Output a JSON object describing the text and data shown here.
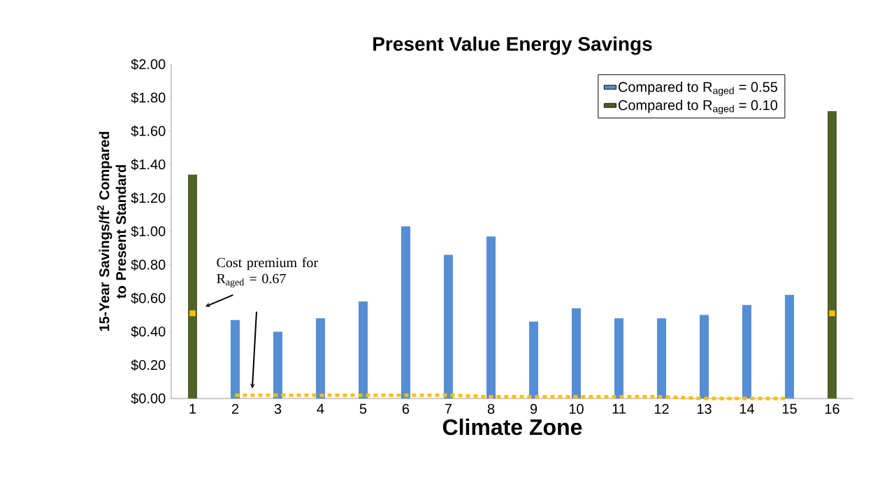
{
  "chart_data": {
    "type": "bar",
    "title": "Present Value Energy Savings",
    "xlabel": "Climate Zone",
    "ylabel": "15-Year Savings/ft$^{2}$ Compared to Present Standard",
    "categories": [
      "1",
      "2",
      "3",
      "4",
      "5",
      "6",
      "7",
      "8",
      "9",
      "10",
      "11",
      "12",
      "13",
      "14",
      "15",
      "16"
    ],
    "series": [
      {
        "name": "Compared to R$_{aged}$ = 0.55",
        "color": "#558ed5",
        "values": [
          null,
          0.47,
          0.4,
          0.48,
          0.58,
          1.03,
          0.86,
          0.97,
          0.46,
          0.54,
          0.48,
          0.48,
          0.5,
          0.56,
          0.62,
          null
        ]
      },
      {
        "name": "Compared to R$_{aged}$ = 0.10",
        "color": "#4f6228",
        "values": [
          1.34,
          null,
          null,
          null,
          null,
          null,
          null,
          null,
          null,
          null,
          null,
          null,
          null,
          null,
          null,
          1.72
        ]
      },
      {
        "type": "line",
        "line_style": "dotted",
        "color": "#ffc000",
        "values": [
          null,
          0.02,
          0.02,
          0.02,
          0.02,
          0.02,
          0.02,
          0.01,
          0.01,
          0.01,
          0.01,
          0.01,
          0.0,
          0.0,
          0.0,
          null
        ]
      },
      {
        "type": "scatter",
        "marker": "square",
        "color": "#ffc000",
        "values": [
          0.51,
          null,
          null,
          null,
          null,
          null,
          null,
          null,
          null,
          null,
          null,
          null,
          null,
          null,
          null,
          0.51
        ]
      }
    ],
    "ylim": [
      0,
      2
    ],
    "yticks": [
      {
        "value": 0,
        "label": "$0.00"
      },
      {
        "value": 0.2,
        "label": "$0.20"
      },
      {
        "value": 0.4,
        "label": "$0.40"
      },
      {
        "value": 0.6,
        "label": "$0.60"
      },
      {
        "value": 0.8,
        "label": "$0.80"
      },
      {
        "value": 1.0,
        "label": "$1.00"
      },
      {
        "value": 1.2,
        "label": "$1.20"
      },
      {
        "value": 1.4,
        "label": "$1.40"
      },
      {
        "value": 1.6,
        "label": "$1.60"
      },
      {
        "value": 1.8,
        "label": "$1.80"
      },
      {
        "value": 2.0,
        "label": "$2.00"
      }
    ],
    "legend": "top right",
    "annotations": [
      "Cost premium for R$_{aged}$ = 0.67"
    ]
  }
}
